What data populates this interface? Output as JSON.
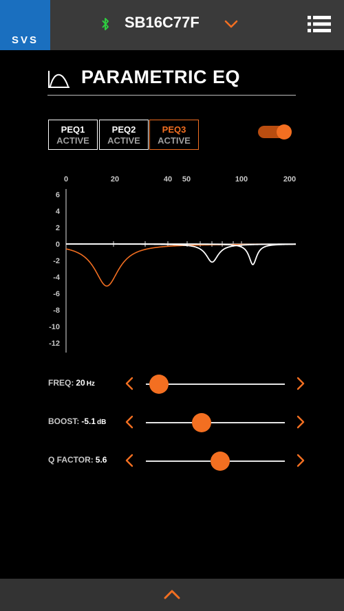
{
  "header": {
    "logo_text": "SVS",
    "device_name": "SB16C77F",
    "bluetooth_icon": "bluetooth-icon",
    "dropdown_icon": "chevron-down-icon",
    "menu_icon": "list-menu-icon"
  },
  "page": {
    "title": "PARAMETRIC EQ",
    "title_icon": "eq-curve-icon"
  },
  "peq_tabs": [
    {
      "label": "PEQ1",
      "status": "ACTIVE",
      "selected": false
    },
    {
      "label": "PEQ2",
      "status": "ACTIVE",
      "selected": false
    },
    {
      "label": "PEQ3",
      "status": "ACTIVE",
      "selected": true
    }
  ],
  "enable_toggle": {
    "on": true
  },
  "chart_data": {
    "type": "line",
    "x_tick_labels": [
      "0",
      "20",
      "40",
      "50",
      "100",
      "200"
    ],
    "y_tick_labels": [
      "6",
      "4",
      "2",
      "0",
      "-2",
      "-4",
      "-6",
      "-8",
      "-10",
      "-12"
    ],
    "ylim": [
      -12,
      6
    ],
    "series": [
      {
        "color": "#f36f21",
        "center_hz": 20,
        "gain_db": -5.1,
        "q": 5.6
      },
      {
        "color": "#ffffff",
        "center_hz": 75,
        "gain_db": -2.2
      },
      {
        "color": "#ffffff",
        "center_hz": 125,
        "gain_db": -2.5
      }
    ]
  },
  "controls": [
    {
      "label": "FREQ:",
      "value": "20",
      "unit": "Hz",
      "fraction": 0.05
    },
    {
      "label": "BOOST:",
      "value": "-5.1",
      "unit": "dB",
      "fraction": 0.39
    },
    {
      "label": "Q FACTOR:",
      "value": "5.6",
      "unit": "",
      "fraction": 0.54
    }
  ],
  "footer": {
    "expand_icon": "chevron-up-icon"
  },
  "colors": {
    "accent": "#f36f21",
    "logo_bg": "#1a6fbf",
    "bluetooth": "#2ecc40",
    "bar_bg": "#3a3a3a"
  }
}
